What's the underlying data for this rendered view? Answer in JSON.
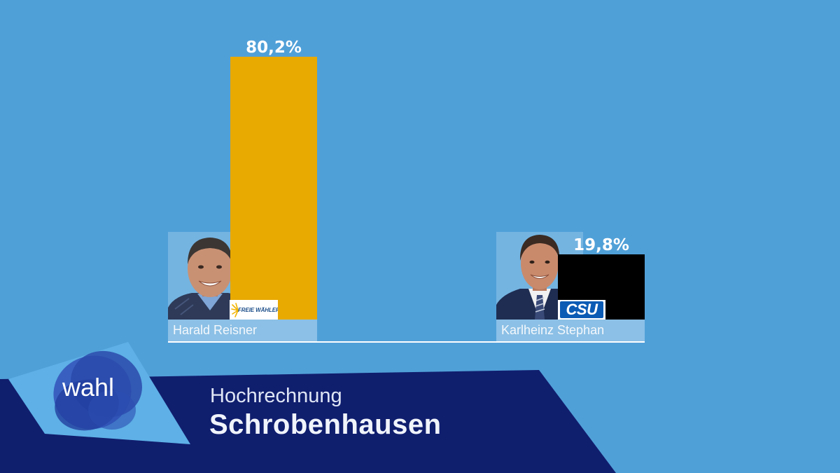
{
  "header": {
    "brand": "wahl",
    "subtitle": "Hochrechnung",
    "title": "Schrobenhausen"
  },
  "colors": {
    "background": "#50a0d8",
    "banner": "#101e6e",
    "logo_panel": "#5eb0e6"
  },
  "chart_data": {
    "type": "bar",
    "categories": [
      "Harald Reisner",
      "Karlheinz Stephan"
    ],
    "values": [
      80.2,
      19.8
    ],
    "value_labels": [
      "80,2%",
      "19,8%"
    ],
    "parties": [
      "FREIE WÄHLER",
      "CSU"
    ],
    "party_logos": [
      "freie-waehler-logo",
      "csu-logo"
    ],
    "colors": [
      "#e8a900",
      "#000000"
    ],
    "grid": false,
    "legend": "none"
  }
}
